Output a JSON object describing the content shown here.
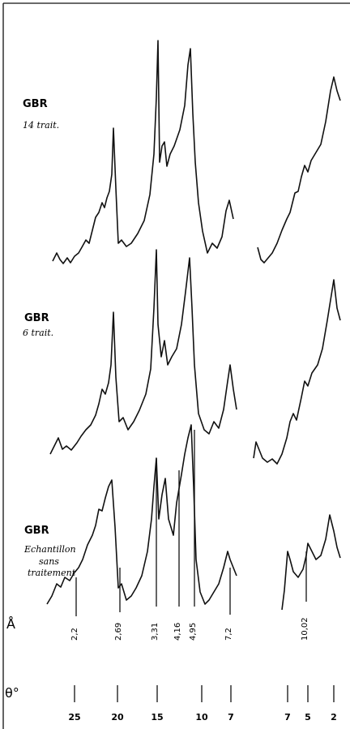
{
  "samples": [
    {
      "title": "GBR",
      "lines": [
        "14 trait."
      ]
    },
    {
      "title": "GBR",
      "lines": [
        "6 trait."
      ]
    },
    {
      "title": "GBR",
      "lines": [
        "Echantillon",
        "sans",
        "traitement"
      ]
    }
  ],
  "d_axis": {
    "symbol": "Å",
    "labels": [
      "2,2",
      "2,69",
      "3,31",
      "4,16",
      "4,95",
      "7,2",
      "10,02"
    ]
  },
  "theta_axis": {
    "symbol": "θ°",
    "labels": [
      "25",
      "20",
      "15",
      "10",
      "7",
      "7",
      "5",
      "2"
    ]
  }
}
